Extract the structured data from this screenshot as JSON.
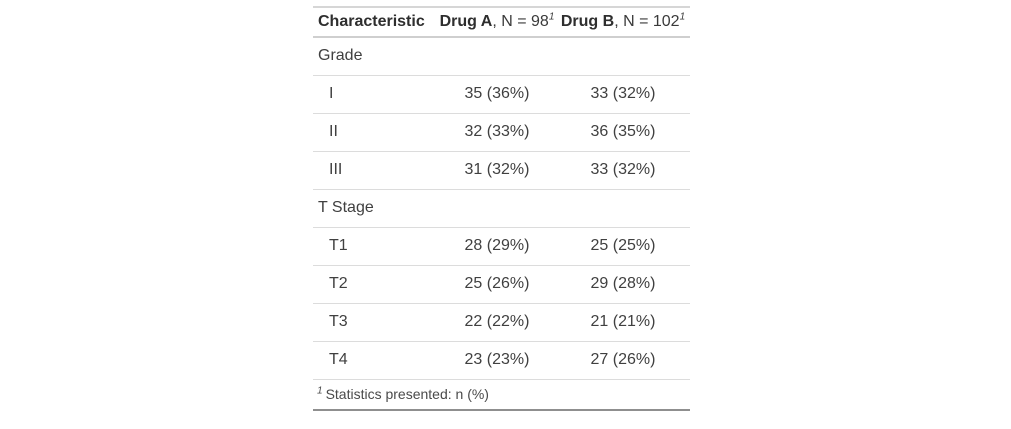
{
  "chart_data": {
    "type": "table",
    "columns": [
      "Characteristic",
      "Drug A, N = 98",
      "Drug B, N = 102"
    ],
    "rows": [
      [
        "Grade",
        "",
        ""
      ],
      [
        "I",
        "35 (36%)",
        "33 (32%)"
      ],
      [
        "II",
        "32 (33%)",
        "36 (35%)"
      ],
      [
        "III",
        "31 (32%)",
        "33 (32%)"
      ],
      [
        "T Stage",
        "",
        ""
      ],
      [
        "T1",
        "28 (29%)",
        "25 (25%)"
      ],
      [
        "T2",
        "25 (26%)",
        "29 (28%)"
      ],
      [
        "T3",
        "22 (22%)",
        "21 (21%)"
      ],
      [
        "T4",
        "23 (23%)",
        "27 (26%)"
      ]
    ],
    "footnote": "1 Statistics presented: n (%)",
    "layout_hints": {
      "stat_columns_align": "center",
      "group_rows": [
        "Grade",
        "T Stage"
      ],
      "grid": "horizontal-separators-only"
    }
  },
  "table": {
    "header": {
      "characteristic": "Characteristic",
      "drug_a": {
        "name": "Drug A",
        "rest": ", N = 98",
        "footnote_mark": "1"
      },
      "drug_b": {
        "name": "Drug B",
        "rest": ", N = 102",
        "footnote_mark": "1"
      }
    },
    "rows": [
      {
        "type": "group",
        "label": "Grade",
        "drug_a": "",
        "drug_b": ""
      },
      {
        "type": "level",
        "label": "I",
        "drug_a": "35 (36%)",
        "drug_b": "33 (32%)"
      },
      {
        "type": "level",
        "label": "II",
        "drug_a": "32 (33%)",
        "drug_b": "36 (35%)"
      },
      {
        "type": "level",
        "label": "III",
        "drug_a": "31 (32%)",
        "drug_b": "33 (32%)"
      },
      {
        "type": "group",
        "label": "T Stage",
        "drug_a": "",
        "drug_b": ""
      },
      {
        "type": "level",
        "label": "T1",
        "drug_a": "28 (29%)",
        "drug_b": "25 (25%)"
      },
      {
        "type": "level",
        "label": "T2",
        "drug_a": "25 (26%)",
        "drug_b": "29 (28%)"
      },
      {
        "type": "level",
        "label": "T3",
        "drug_a": "22 (22%)",
        "drug_b": "21 (21%)"
      },
      {
        "type": "level",
        "label": "T4",
        "drug_a": "23 (23%)",
        "drug_b": "27 (26%)"
      }
    ],
    "footnote": {
      "mark": "1",
      "text": "Statistics presented: n (%)"
    }
  },
  "colors": {
    "top_border": "#d6d6d6",
    "header_underline": "#cfcfcf",
    "row_separator": "#dcdcdc",
    "bottom_border": "#8f8f8f",
    "body_text": "#404040",
    "header_text": "#2e2e2e"
  }
}
